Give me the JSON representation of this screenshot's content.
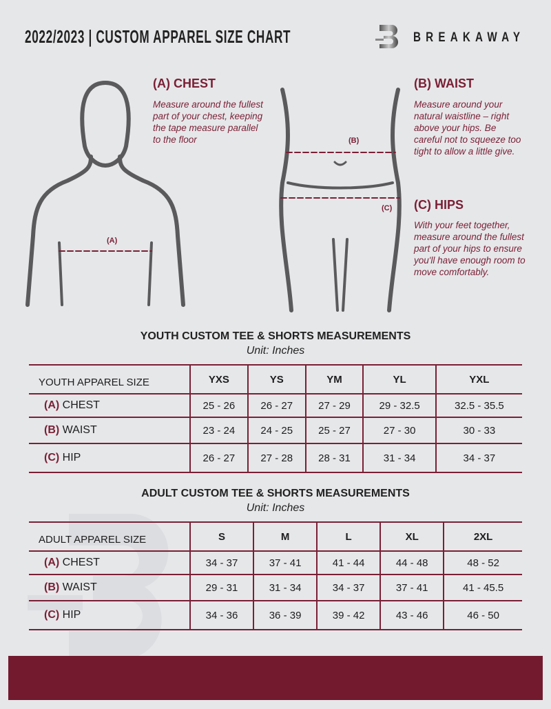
{
  "header": {
    "title": "2022/2023 | CUSTOM APPAREL SIZE CHART",
    "brand": "BREAKAWAY",
    "logo": "B"
  },
  "guide": {
    "chest": {
      "title": "(A) CHEST",
      "text": "Measure around the fullest part of your chest, keeping the tape measure parallel to the floor",
      "marker": "(A)"
    },
    "waist": {
      "title": "(B) WAIST",
      "text": "Measure around your natural waistline – right above your hips. Be careful not to squeeze too tight to allow a little give.",
      "marker": "(B)"
    },
    "hips": {
      "title": "(C) HIPS",
      "text": "With your feet together, measure around the fullest part of your hips to ensure you'll have enough room to move comfortably.",
      "marker": "(C)"
    }
  },
  "youth": {
    "title": "YOUTH CUSTOM TEE & SHORTS MEASUREMENTS",
    "unit": "Unit: Inches",
    "header": "YOUTH APPAREL SIZE",
    "sizes": [
      "YXS",
      "YS",
      "YM",
      "YL",
      "YXL"
    ],
    "rows": [
      {
        "code": "(A)",
        "name": "CHEST",
        "values": [
          "25 - 26",
          "26 - 27",
          "27 - 29",
          "29 - 32.5",
          "32.5 - 35.5"
        ]
      },
      {
        "code": "(B)",
        "name": "WAIST",
        "values": [
          "23 - 24",
          "24 - 25",
          "25 - 27",
          "27 - 30",
          "30 - 33"
        ]
      },
      {
        "code": "(C)",
        "name": "HIP",
        "values": [
          "26 - 27",
          "27 - 28",
          "28 - 31",
          "31 - 34",
          "34 - 37"
        ]
      }
    ]
  },
  "adult": {
    "title": "ADULT CUSTOM TEE & SHORTS MEASUREMENTS",
    "unit": "Unit: Inches",
    "header": "ADULT APPAREL SIZE",
    "sizes": [
      "S",
      "M",
      "L",
      "XL",
      "2XL"
    ],
    "rows": [
      {
        "code": "(A)",
        "name": "CHEST",
        "values": [
          "34 - 37",
          "37 - 41",
          "41 - 44",
          "44 - 48",
          "48 - 52"
        ]
      },
      {
        "code": "(B)",
        "name": "WAIST",
        "values": [
          "29 - 31",
          "31 - 34",
          "34 - 37",
          "37 - 41",
          "41 - 45.5"
        ]
      },
      {
        "code": "(C)",
        "name": "HIP",
        "values": [
          "34 - 36",
          "36 - 39",
          "39 - 42",
          "43 - 46",
          "46 - 50"
        ]
      }
    ]
  },
  "colors": {
    "accent": "#7a1f35",
    "background": "#e6e7e9",
    "footer": "#731a2e"
  }
}
